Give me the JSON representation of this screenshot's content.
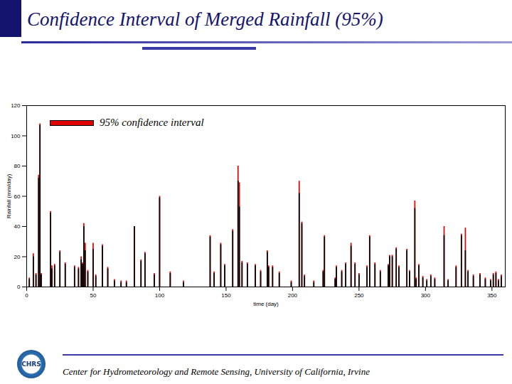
{
  "chart_data": {
    "type": "bar",
    "title": "Confidence Interval of Merged Rainfall (95%)",
    "x_label": "time (day)",
    "y_label": "Rainfall (mm/day)",
    "x": [
      2,
      5,
      7,
      9,
      10,
      11,
      18,
      19,
      21,
      25,
      29,
      36,
      39,
      41,
      42,
      43,
      44,
      46,
      50,
      52,
      57,
      61,
      66,
      71,
      75,
      81,
      86,
      89,
      96,
      100,
      108,
      118,
      138,
      141,
      146,
      149,
      155,
      159,
      160,
      162,
      166,
      172,
      176,
      181,
      182,
      185,
      190,
      199,
      205,
      207,
      209,
      216,
      223,
      224,
      232,
      233,
      237,
      240,
      244,
      247,
      250,
      256,
      258,
      262,
      266,
      272,
      273,
      275,
      278,
      280,
      286,
      288,
      292,
      293,
      295,
      298,
      301,
      304,
      307,
      314,
      317,
      323,
      327,
      330,
      332,
      336,
      341,
      345,
      349,
      351,
      353,
      355,
      357
    ],
    "values": [
      5,
      20,
      8,
      72,
      107,
      8,
      49,
      12,
      14,
      23,
      15,
      13,
      12,
      18,
      15,
      40,
      24,
      10,
      25,
      7,
      27,
      12,
      4,
      3,
      3,
      40,
      17,
      22,
      8,
      59,
      9,
      3,
      33,
      9,
      28,
      14,
      37,
      70,
      53,
      16,
      15,
      14,
      10,
      23,
      13,
      13,
      9,
      3,
      62,
      42,
      7,
      3,
      10,
      33,
      5,
      13,
      10,
      15,
      27,
      15,
      8,
      13,
      33,
      15,
      10,
      14,
      20,
      20,
      25,
      13,
      24,
      10,
      52,
      5,
      14,
      6,
      4,
      7,
      5,
      34,
      4,
      13,
      34,
      24,
      10,
      7,
      8,
      5,
      4,
      8,
      9,
      4,
      7
    ],
    "color": "#000000",
    "interval": {
      "name": "95% confidence interval",
      "color": "#e00000",
      "upper": [
        6,
        22,
        9,
        74,
        108,
        9,
        50,
        14,
        15,
        24,
        16,
        14,
        13,
        20,
        16,
        42,
        29,
        11,
        29,
        8,
        28,
        13,
        5,
        4,
        4,
        40,
        18,
        23,
        9,
        60,
        10,
        4,
        34,
        10,
        29,
        15,
        38,
        80,
        69,
        17,
        16,
        15,
        11,
        24,
        14,
        14,
        10,
        4,
        70,
        43,
        8,
        4,
        11,
        34,
        6,
        14,
        11,
        16,
        29,
        16,
        9,
        14,
        34,
        16,
        11,
        15,
        21,
        21,
        26,
        14,
        25,
        11,
        57,
        6,
        15,
        7,
        5,
        8,
        6,
        40,
        5,
        14,
        35,
        39,
        11,
        8,
        9,
        6,
        5,
        9,
        10,
        5,
        8
      ]
    },
    "xlim": [
      0,
      360
    ],
    "xticks": [
      0,
      50,
      100,
      150,
      200,
      250,
      300,
      350
    ],
    "ylim": [
      0,
      120
    ],
    "yticks": [
      0,
      20,
      40,
      60,
      80,
      100,
      120
    ],
    "grid": false,
    "legend": "upper left"
  },
  "footer": "Center for Hydrometeorology and Remote Sensing, University of California, Irvine",
  "logo": "CHRS"
}
